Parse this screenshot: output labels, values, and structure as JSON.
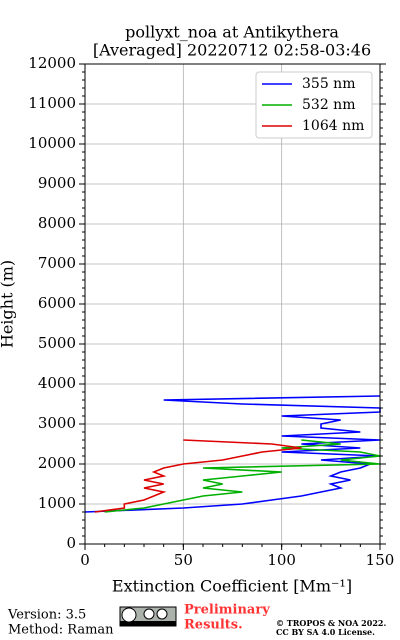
{
  "chart_data": {
    "type": "line",
    "title": "pollyxt_noa at Antikythera",
    "subtitle": "[Averaged] 20220712 02:58-03:46",
    "x_label": "Extinction Coefficient [Mm⁻¹]",
    "y_label": "Height (m)",
    "y": [
      800,
      900,
      1000,
      1100,
      1200,
      1300,
      1400,
      1500,
      1600,
      1700,
      1800,
      1900,
      2000,
      2100,
      2200,
      2300,
      2400,
      2500,
      2600,
      2700,
      2800,
      2900,
      3000,
      3100,
      3200,
      3300,
      3400,
      3500,
      3600,
      3700,
      3800
    ],
    "series": [
      {
        "name": "355 nm",
        "color": "#0000ff",
        "values": [
          0,
          50,
          80,
          95,
          110,
          120,
          130,
          125,
          135,
          125,
          130,
          140,
          145,
          120,
          150,
          100,
          140,
          110,
          150,
          100,
          140,
          120,
          120,
          130,
          100,
          150,
          150,
          80,
          40,
          150,
          null
        ]
      },
      {
        "name": "532 nm",
        "color": "#00b000",
        "values": [
          10,
          30,
          40,
          50,
          60,
          80,
          60,
          70,
          60,
          80,
          100,
          60,
          150,
          130,
          150,
          140,
          100,
          130,
          110,
          null,
          null,
          null,
          null,
          null,
          null,
          null,
          null,
          null,
          null,
          null,
          null
        ]
      },
      {
        "name": "1064 nm",
        "color": "#dd0000",
        "values": [
          5,
          20,
          20,
          30,
          35,
          40,
          30,
          40,
          30,
          40,
          35,
          40,
          50,
          70,
          80,
          90,
          110,
          95,
          50,
          null,
          null,
          null,
          null,
          null,
          null,
          null,
          null,
          null,
          null,
          null,
          null
        ]
      }
    ],
    "xlim": [
      0,
      150
    ],
    "xticks": [
      0,
      50,
      100,
      150
    ],
    "ylim": [
      0,
      12000
    ],
    "yticks": [
      0,
      1000,
      2000,
      3000,
      4000,
      5000,
      6000,
      7000,
      8000,
      9000,
      10000,
      11000,
      12000
    ],
    "grid": true,
    "legend": "upper right",
    "footer": {
      "version": "Version: 3.5",
      "method": "Method: Raman",
      "status_1": "Preliminary",
      "status_2": "Results.",
      "copyright": "© TROPOS & NOA 2022.",
      "license": "CC BY SA 4.0 License."
    }
  }
}
